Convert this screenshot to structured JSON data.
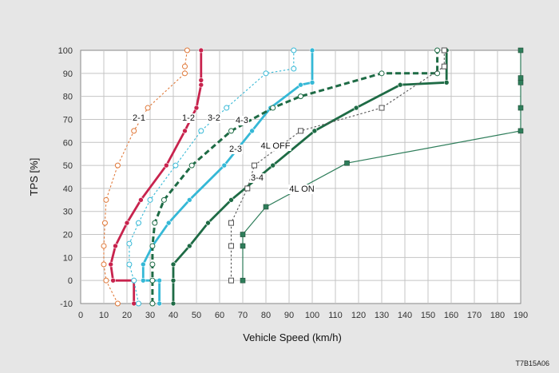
{
  "chart_data": {
    "type": "line",
    "title": "",
    "xlabel": "Vehicle Speed",
    "xunit": "(km/h)",
    "ylabel": "TPS [%]",
    "xlim": [
      0,
      190
    ],
    "ylim": [
      -10,
      100
    ],
    "xticks": [
      0,
      10,
      20,
      30,
      40,
      50,
      60,
      70,
      80,
      90,
      100,
      110,
      120,
      130,
      140,
      150,
      160,
      170,
      180,
      190
    ],
    "yticks": [
      -10,
      0,
      10,
      20,
      30,
      40,
      50,
      60,
      70,
      80,
      90,
      100
    ],
    "grid": true,
    "figure_code": "T7B15A06",
    "series": [
      {
        "name": "2-1",
        "color": "#e07838",
        "style": "dotted",
        "marker": "open-circle",
        "points": [
          [
            16,
            -10
          ],
          [
            11,
            0
          ],
          [
            10,
            7
          ],
          [
            10,
            15
          ],
          [
            10.5,
            25
          ],
          [
            11,
            35
          ],
          [
            16,
            50
          ],
          [
            23,
            65
          ],
          [
            29,
            75
          ],
          [
            45,
            90
          ],
          [
            45,
            93
          ],
          [
            46,
            100
          ]
        ]
      },
      {
        "name": "1-2",
        "color": "#c8234d",
        "style": "solid-thick",
        "marker": "filled-circle",
        "points": [
          [
            23,
            -10
          ],
          [
            23,
            0
          ],
          [
            14,
            0
          ],
          [
            13,
            7
          ],
          [
            15,
            15
          ],
          [
            20,
            25
          ],
          [
            26,
            35
          ],
          [
            37,
            50
          ],
          [
            45,
            65
          ],
          [
            50,
            75
          ],
          [
            52,
            85
          ],
          [
            52,
            87
          ],
          [
            52,
            100
          ]
        ]
      },
      {
        "name": "3-2",
        "color": "#35b8d6",
        "style": "dotted",
        "marker": "open-circle",
        "points": [
          [
            25,
            -10
          ],
          [
            23,
            0
          ],
          [
            21,
            7
          ],
          [
            21,
            16
          ],
          [
            25,
            25
          ],
          [
            30,
            35
          ],
          [
            41,
            50
          ],
          [
            52,
            65
          ],
          [
            63,
            75
          ],
          [
            80,
            90
          ],
          [
            92,
            92
          ],
          [
            92,
            100
          ]
        ]
      },
      {
        "name": "2-3",
        "color": "#35b8d6",
        "style": "solid-thick",
        "marker": "filled-circle",
        "points": [
          [
            34,
            -10
          ],
          [
            34,
            0
          ],
          [
            27,
            0
          ],
          [
            27,
            7
          ],
          [
            31,
            15
          ],
          [
            38,
            25
          ],
          [
            47,
            35
          ],
          [
            62,
            50
          ],
          [
            74,
            65
          ],
          [
            82,
            75
          ],
          [
            95,
            85
          ],
          [
            100,
            86
          ],
          [
            100,
            100
          ]
        ]
      },
      {
        "name": "4-3",
        "color": "#1e6b45",
        "style": "dashed-thick",
        "marker": "open-circle",
        "points": [
          [
            31,
            -10
          ],
          [
            31,
            0
          ],
          [
            31,
            7
          ],
          [
            31,
            15
          ],
          [
            32,
            25
          ],
          [
            36,
            35
          ],
          [
            48,
            50
          ],
          [
            65,
            65
          ],
          [
            83,
            75
          ],
          [
            95,
            80
          ],
          [
            130,
            90
          ],
          [
            154,
            90
          ],
          [
            154,
            100
          ]
        ]
      },
      {
        "name": "3-4",
        "color": "#1e6b45",
        "style": "solid-thick",
        "marker": "filled-circle",
        "points": [
          [
            40,
            -10
          ],
          [
            40,
            0
          ],
          [
            40,
            7
          ],
          [
            47,
            15
          ],
          [
            55,
            25
          ],
          [
            65,
            35
          ],
          [
            83,
            50
          ],
          [
            101,
            65
          ],
          [
            119,
            75
          ],
          [
            138,
            85
          ],
          [
            158,
            86
          ],
          [
            158,
            100
          ]
        ]
      },
      {
        "name": "4L OFF",
        "color": "#555555",
        "style": "dotted",
        "marker": "open-square",
        "points": [
          [
            65,
            0
          ],
          [
            65,
            15
          ],
          [
            65,
            25
          ],
          [
            72,
            40
          ],
          [
            75,
            50
          ],
          [
            95,
            65
          ],
          [
            130,
            75
          ],
          [
            157,
            93
          ],
          [
            157,
            100
          ]
        ]
      },
      {
        "name": "4L ON",
        "color": "#2e7d5a",
        "style": "solid-thin",
        "marker": "filled-square",
        "points": [
          [
            70,
            0
          ],
          [
            70,
            15
          ],
          [
            70,
            20
          ],
          [
            80,
            32
          ],
          [
            115,
            51
          ],
          [
            190,
            65
          ],
          [
            190,
            75
          ],
          [
            190,
            86
          ],
          [
            190,
            88
          ],
          [
            190,
            100
          ]
        ]
      }
    ]
  }
}
